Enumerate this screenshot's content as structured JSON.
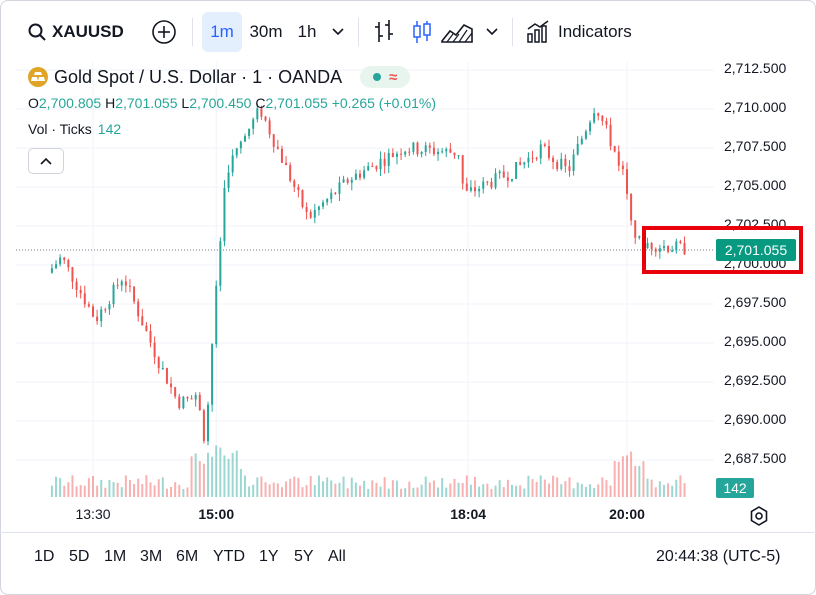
{
  "toolbar": {
    "symbol": "XAUUSD",
    "timeframes": [
      "1m",
      "30m",
      "1h"
    ],
    "active_timeframe": "1m",
    "indicators_label": "Indicators",
    "icons": [
      "search-icon",
      "plus-circle-icon",
      "chevron-down-icon",
      "bar-chart-icon",
      "candles-icon",
      "area-chart-icon",
      "indicators-icon"
    ]
  },
  "legend": {
    "title": "Gold Spot / U.S. Dollar · 1 · OANDA",
    "status_wave": "≈",
    "ohlc": {
      "o_label": "O",
      "o": "2,700.805",
      "h_label": "H",
      "h": "2,701.055",
      "l_label": "L",
      "l": "2,700.450",
      "c_label": "C",
      "c": "2,701.055",
      "change": "+0.265 (+0.01%)"
    },
    "volume_label": "Vol · Ticks",
    "volume_value": "142"
  },
  "price_axis": {
    "ticks": [
      "2,712.500",
      "2,710.000",
      "2,707.500",
      "2,705.000",
      "2,702.500",
      "2,700.000",
      "2,697.500",
      "2,695.000",
      "2,692.500",
      "2,690.000",
      "2,687.500"
    ],
    "current_price": "2,701.055",
    "volume_badge": "142"
  },
  "time_axis": {
    "ticks": [
      "13:30",
      "15:00",
      "18:04",
      "20:00"
    ]
  },
  "range_buttons": [
    "1D",
    "5D",
    "1M",
    "3M",
    "6M",
    "YTD",
    "1Y",
    "5Y",
    "All"
  ],
  "clock": "20:44:38 (UTC-5)",
  "colors": {
    "up": "#26a69a",
    "down": "#ef5350",
    "accent": "#2962ff",
    "highlight_box": "#e8000b"
  },
  "chart_data": {
    "type": "candlestick",
    "price_range": [
      2686.5,
      2713.5
    ],
    "key_points": [
      {
        "time": "13:00",
        "price": 2699.5
      },
      {
        "time": "13:10",
        "price": 2700.5
      },
      {
        "time": "13:35",
        "price": 2696.5
      },
      {
        "time": "13:55",
        "price": 2699.3
      },
      {
        "time": "14:20",
        "price": 2694.0
      },
      {
        "time": "14:35",
        "price": 2691.2
      },
      {
        "time": "14:50",
        "price": 2691.5
      },
      {
        "time": "14:55",
        "price": 2688.5
      },
      {
        "time": "15:00",
        "price": 2695.0
      },
      {
        "time": "15:10",
        "price": 2706.0
      },
      {
        "time": "15:35",
        "price": 2710.0
      },
      {
        "time": "16:10",
        "price": 2703.0
      },
      {
        "time": "16:40",
        "price": 2705.5
      },
      {
        "time": "17:20",
        "price": 2707.5
      },
      {
        "time": "18:00",
        "price": 2707.2
      },
      {
        "time": "18:04",
        "price": 2704.5
      },
      {
        "time": "18:40",
        "price": 2706.0
      },
      {
        "time": "19:00",
        "price": 2707.5
      },
      {
        "time": "19:20",
        "price": 2706.0
      },
      {
        "time": "19:40",
        "price": 2710.3
      },
      {
        "time": "20:00",
        "price": 2706.0
      },
      {
        "time": "20:10",
        "price": 2701.5
      },
      {
        "time": "20:30",
        "price": 2701.2
      },
      {
        "time": "20:44",
        "price": 2701.055
      }
    ]
  }
}
